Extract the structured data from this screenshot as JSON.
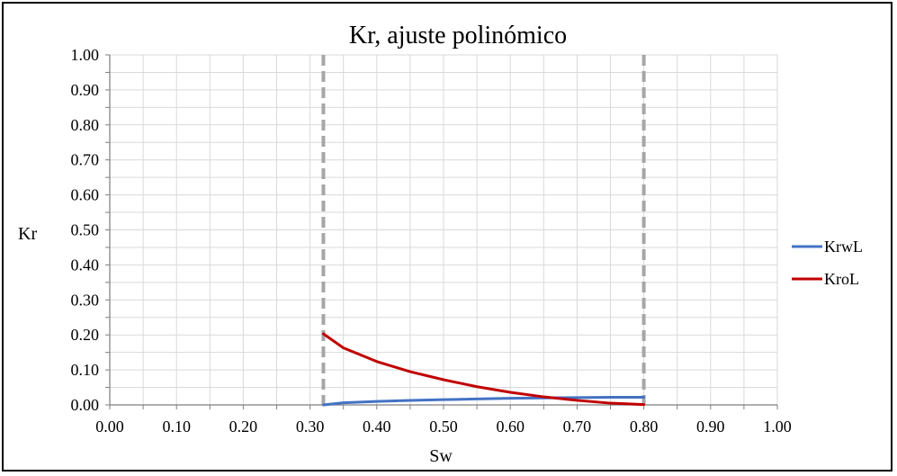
{
  "chart_data": {
    "type": "line",
    "title": "Kr, ajuste polinómico",
    "xlabel": "Sw",
    "ylabel": "Kr",
    "xlim": [
      0,
      1
    ],
    "ylim": [
      0,
      1
    ],
    "x_ticks": [
      "0.00",
      "0.10",
      "0.20",
      "0.30",
      "0.40",
      "0.50",
      "0.60",
      "0.70",
      "0.80",
      "0.90",
      "1.00"
    ],
    "y_ticks": [
      "0.00",
      "0.10",
      "0.20",
      "0.30",
      "0.40",
      "0.50",
      "0.60",
      "0.70",
      "0.80",
      "0.90",
      "1.00"
    ],
    "grid": true,
    "legend_position": "right",
    "reference_lines": [
      {
        "orientation": "vertical",
        "x": 0.32,
        "style": "dashed",
        "color": "#A6A6A6"
      },
      {
        "orientation": "vertical",
        "x": 0.8,
        "style": "dashed",
        "color": "#A6A6A6"
      }
    ],
    "series": [
      {
        "name": "KrwL",
        "color": "#4472C4",
        "x": [
          0.32,
          0.35,
          0.4,
          0.45,
          0.5,
          0.55,
          0.6,
          0.65,
          0.7,
          0.75,
          0.8
        ],
        "y": [
          0.0,
          0.006,
          0.01,
          0.013,
          0.015,
          0.017,
          0.019,
          0.02,
          0.021,
          0.022,
          0.022
        ]
      },
      {
        "name": "KroL",
        "color": "#C00000",
        "x": [
          0.32,
          0.35,
          0.4,
          0.45,
          0.5,
          0.55,
          0.6,
          0.65,
          0.7,
          0.75,
          0.8
        ],
        "y": [
          0.203,
          0.163,
          0.124,
          0.095,
          0.072,
          0.052,
          0.036,
          0.023,
          0.013,
          0.005,
          0.001
        ]
      }
    ]
  }
}
